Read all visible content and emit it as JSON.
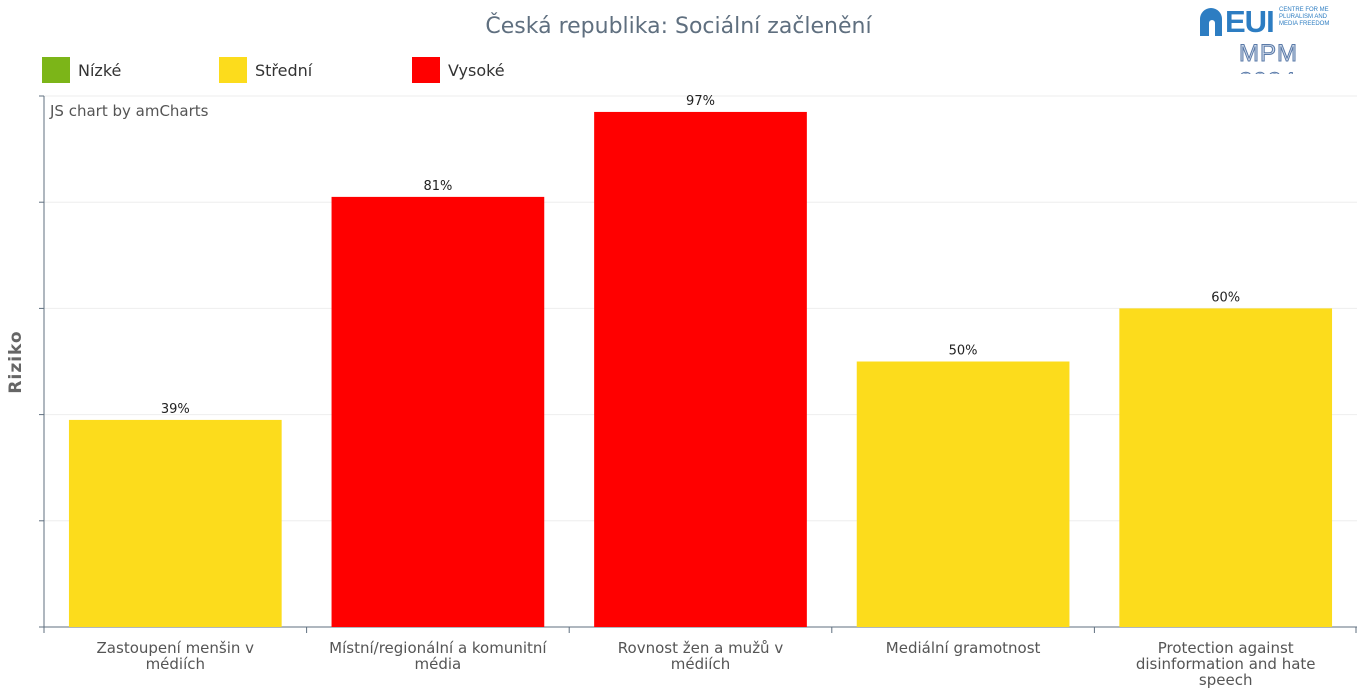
{
  "title": "Česká republika: Sociální začlenění",
  "watermark": "JS chart by amCharts",
  "logo": {
    "brand": "EUI",
    "subtitle": "CENTRE FOR ME\nPLURALISM AND\nMEDIA FREEDOM",
    "mpm": "MPM 2024"
  },
  "legend": [
    {
      "label": "Nízké",
      "color": "#7cb518"
    },
    {
      "label": "Střední",
      "color": "#fcdc1c"
    },
    {
      "label": "Vysoké",
      "color": "#ff0000"
    }
  ],
  "chart_data": {
    "type": "bar",
    "title": "Česká republika: Sociální začlenění",
    "ylabel": "Riziko",
    "xlabel": "",
    "ylim": [
      0,
      100
    ],
    "grid": true,
    "legend_position": "top-left",
    "categories": [
      "Zastoupení menšin v médiích",
      "Místní/regionální a komunitní média",
      "Rovnost žen a mužů v médiích",
      "Mediální gramotnost",
      "Protection against disinformation and hate speech"
    ],
    "values": [
      39,
      81,
      97,
      50,
      60
    ],
    "value_labels": [
      "39%",
      "81%",
      "97%",
      "50%",
      "60%"
    ],
    "risk_levels": [
      "Střední",
      "Vysoké",
      "Vysoké",
      "Střední",
      "Střední"
    ],
    "colors": [
      "#fcdc1c",
      "#ff0000",
      "#ff0000",
      "#fcdc1c",
      "#fcdc1c"
    ]
  }
}
